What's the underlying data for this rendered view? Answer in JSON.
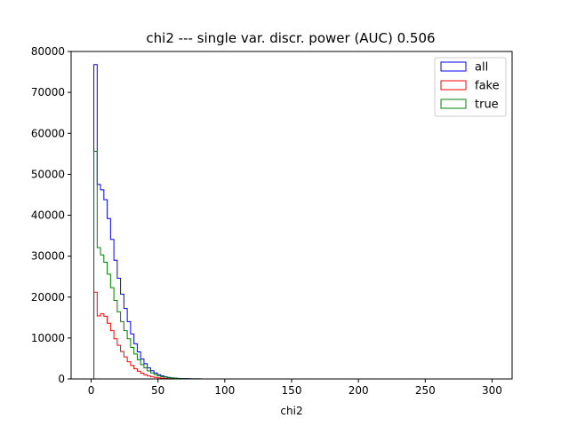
{
  "chart_data": {
    "type": "histogram-step",
    "title": "chi2 --- single var. discr. power (AUC) 0.506",
    "xlabel": "chi2",
    "ylabel": "",
    "xlim": [
      -15,
      315
    ],
    "ylim": [
      0,
      80000
    ],
    "xticks": [
      0,
      50,
      100,
      150,
      200,
      250,
      300
    ],
    "yticks": [
      0,
      10000,
      20000,
      30000,
      40000,
      50000,
      60000,
      70000,
      80000
    ],
    "bin_start": 2,
    "bin_width": 2.5,
    "legend_position": "top-right",
    "grid": false,
    "series": [
      {
        "name": "all",
        "color": "#0000ff",
        "values": [
          76800,
          47500,
          46200,
          43800,
          39200,
          34100,
          29000,
          24600,
          20700,
          17200,
          14000,
          11000,
          8600,
          6600,
          4900,
          3700,
          2700,
          2000,
          1450,
          1050,
          750,
          540,
          390,
          280,
          200,
          140,
          100,
          70,
          50,
          35,
          25,
          18,
          12,
          8,
          5
        ]
      },
      {
        "name": "fake",
        "color": "#ff0000",
        "values": [
          21200,
          15400,
          15900,
          15300,
          13600,
          11800,
          9800,
          8200,
          6700,
          5400,
          4200,
          3300,
          2500,
          1900,
          1400,
          1000,
          720,
          520,
          370,
          260,
          180,
          120,
          80,
          55,
          38,
          25,
          17,
          11,
          7,
          5,
          3,
          2,
          1,
          1,
          0
        ]
      },
      {
        "name": "true",
        "color": "#008000",
        "values": [
          55600,
          32100,
          30300,
          28500,
          25600,
          22300,
          19200,
          16400,
          14000,
          11800,
          9800,
          7700,
          6100,
          4700,
          3500,
          2700,
          1980,
          1480,
          1080,
          790,
          570,
          420,
          310,
          225,
          162,
          115,
          83,
          59,
          43,
          30,
          22,
          16,
          11,
          7,
          5
        ]
      }
    ]
  }
}
